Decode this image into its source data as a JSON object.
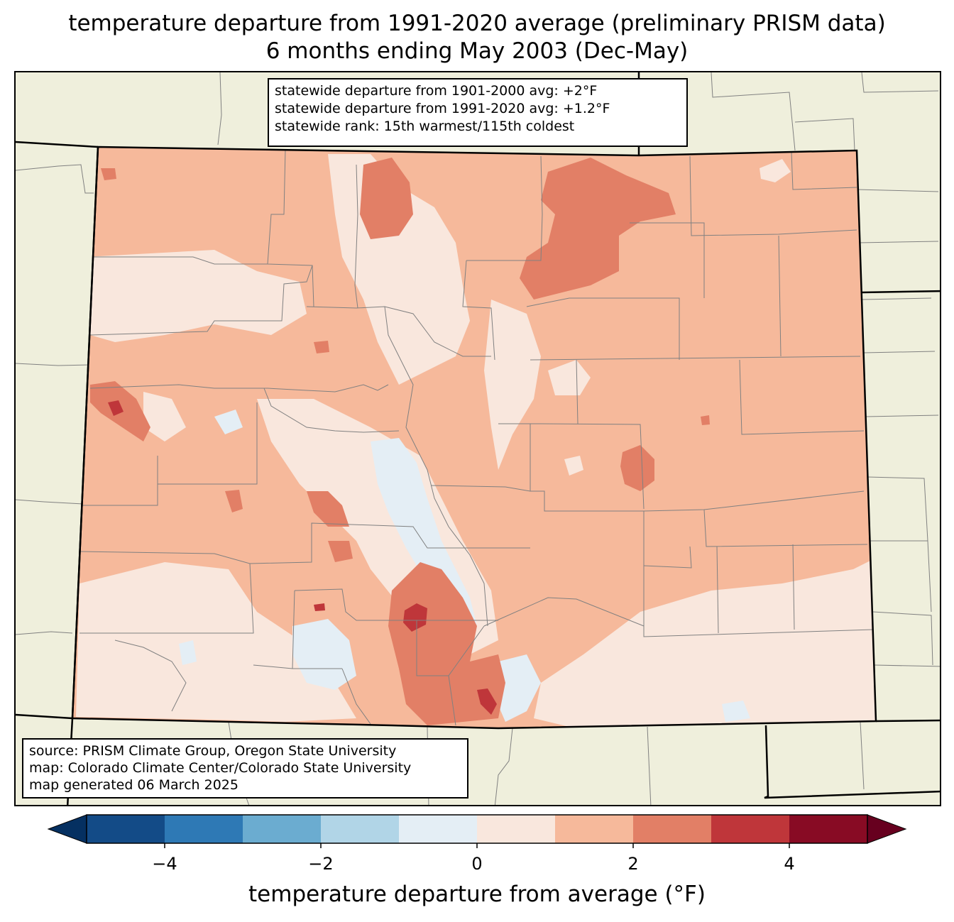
{
  "title": {
    "line1": "temperature departure from 1991-2020 average (preliminary PRISM data)",
    "line2": "6 months ending May 2003 (Dec-May)"
  },
  "stats_box": {
    "line1": "statewide departure from 1901-2000 avg: +2°F",
    "line2": "statewide departure from 1991-2020 avg: +1.2°F",
    "line3": "statewide rank: 15th warmest/115th coldest"
  },
  "credits_box": {
    "line1": "source: PRISM Climate Group, Oregon State University",
    "line2": "map: Colorado Climate Center/Colorado State University",
    "line3": "map generated 06 March 2025"
  },
  "colorbar": {
    "title": "temperature departure from average (°F)",
    "ticks": [
      "−4",
      "−2",
      "0",
      "2",
      "4"
    ],
    "tick_values": [
      -4,
      -2,
      0,
      2,
      4
    ],
    "range": [
      -5,
      5
    ],
    "bins": [
      {
        "from": -5,
        "to": -4,
        "color": "#134b87"
      },
      {
        "from": -4,
        "to": -3,
        "color": "#2e79b5"
      },
      {
        "from": -3,
        "to": -2,
        "color": "#6bacd0"
      },
      {
        "from": -2,
        "to": -1,
        "color": "#b1d5e7"
      },
      {
        "from": -1,
        "to": 0,
        "color": "#e4eef5"
      },
      {
        "from": 0,
        "to": 1,
        "color": "#f9e7dd"
      },
      {
        "from": 1,
        "to": 2,
        "color": "#f6b99b"
      },
      {
        "from": 2,
        "to": 3,
        "color": "#e27f66"
      },
      {
        "from": 3,
        "to": 4,
        "color": "#bf363a"
      },
      {
        "from": 4,
        "to": 5,
        "color": "#880b24"
      }
    ],
    "under_color": "#053061",
    "over_color": "#67001f"
  },
  "map": {
    "background_color": "#efefdc",
    "base_fill": "#f6b99b",
    "county_line_color": "#808080",
    "state_line_color": "#000000"
  }
}
